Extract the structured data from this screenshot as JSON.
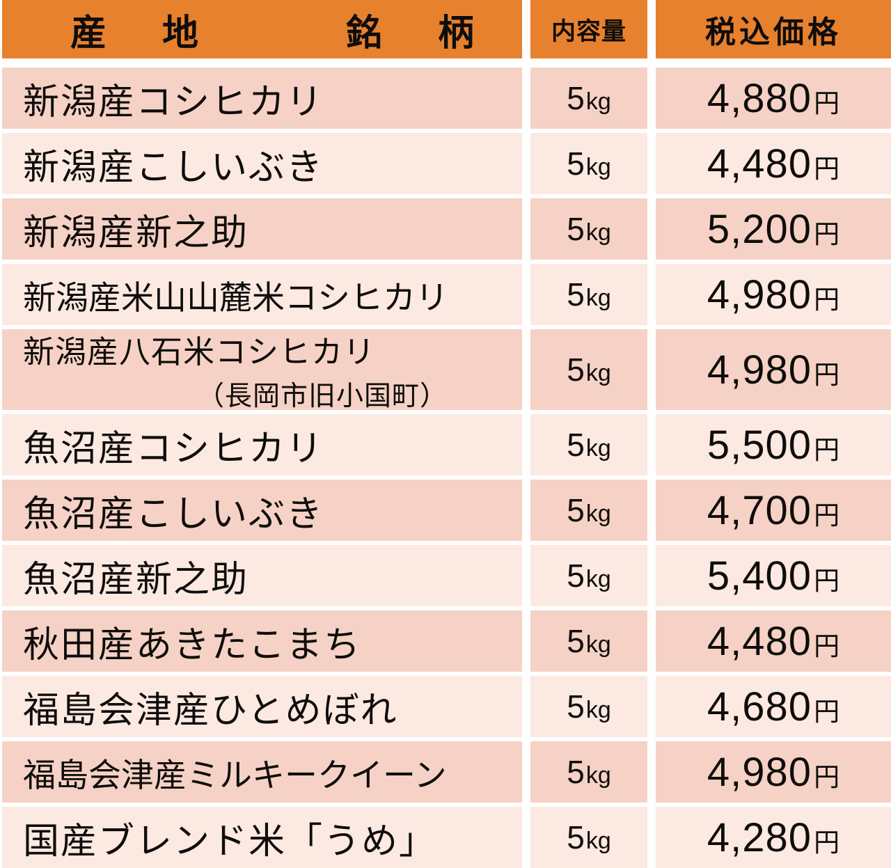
{
  "table": {
    "header": {
      "origin_label": "産　地",
      "brand_label": "銘　柄",
      "amount_label": "内容量",
      "price_label": "税込価格"
    },
    "rows": [
      {
        "name": "新潟産コシヒカリ",
        "amount_value": "5",
        "amount_unit": "kg",
        "price_value": "4,880",
        "price_unit": "円"
      },
      {
        "name": "新潟産こしいぶき",
        "amount_value": "5",
        "amount_unit": "kg",
        "price_value": "4,480",
        "price_unit": "円"
      },
      {
        "name": "新潟産新之助",
        "amount_value": "5",
        "amount_unit": "kg",
        "price_value": "5,200",
        "price_unit": "円"
      },
      {
        "name": "新潟産米山山麓米コシヒカリ",
        "amount_value": "5",
        "amount_unit": "kg",
        "price_value": "4,980",
        "price_unit": "円"
      },
      {
        "name": "新潟産八石米コシヒカリ",
        "subtitle": "（長岡市旧小国町）",
        "amount_value": "5",
        "amount_unit": "kg",
        "price_value": "4,980",
        "price_unit": "円"
      },
      {
        "name": "魚沼産コシヒカリ",
        "amount_value": "5",
        "amount_unit": "kg",
        "price_value": "5,500",
        "price_unit": "円"
      },
      {
        "name": "魚沼産こしいぶき",
        "amount_value": "5",
        "amount_unit": "kg",
        "price_value": "4,700",
        "price_unit": "円"
      },
      {
        "name": "魚沼産新之助",
        "amount_value": "5",
        "amount_unit": "kg",
        "price_value": "5,400",
        "price_unit": "円"
      },
      {
        "name": "秋田産あきたこまち",
        "amount_value": "5",
        "amount_unit": "kg",
        "price_value": "4,480",
        "price_unit": "円"
      },
      {
        "name": "福島会津産ひとめぼれ",
        "amount_value": "5",
        "amount_unit": "kg",
        "price_value": "4,680",
        "price_unit": "円"
      },
      {
        "name": "福島会津産ミルキークイーン",
        "amount_value": "5",
        "amount_unit": "kg",
        "price_value": "4,980",
        "price_unit": "円"
      },
      {
        "name": "国産ブレンド米「うめ」",
        "amount_value": "5",
        "amount_unit": "kg",
        "price_value": "4,280",
        "price_unit": "円"
      }
    ]
  },
  "colors": {
    "header_bg": "#e8812e",
    "row_dark": "#f5d2c5",
    "row_light": "#fbe9e2",
    "text": "#0f0d0b",
    "gap": "#ffffff"
  }
}
